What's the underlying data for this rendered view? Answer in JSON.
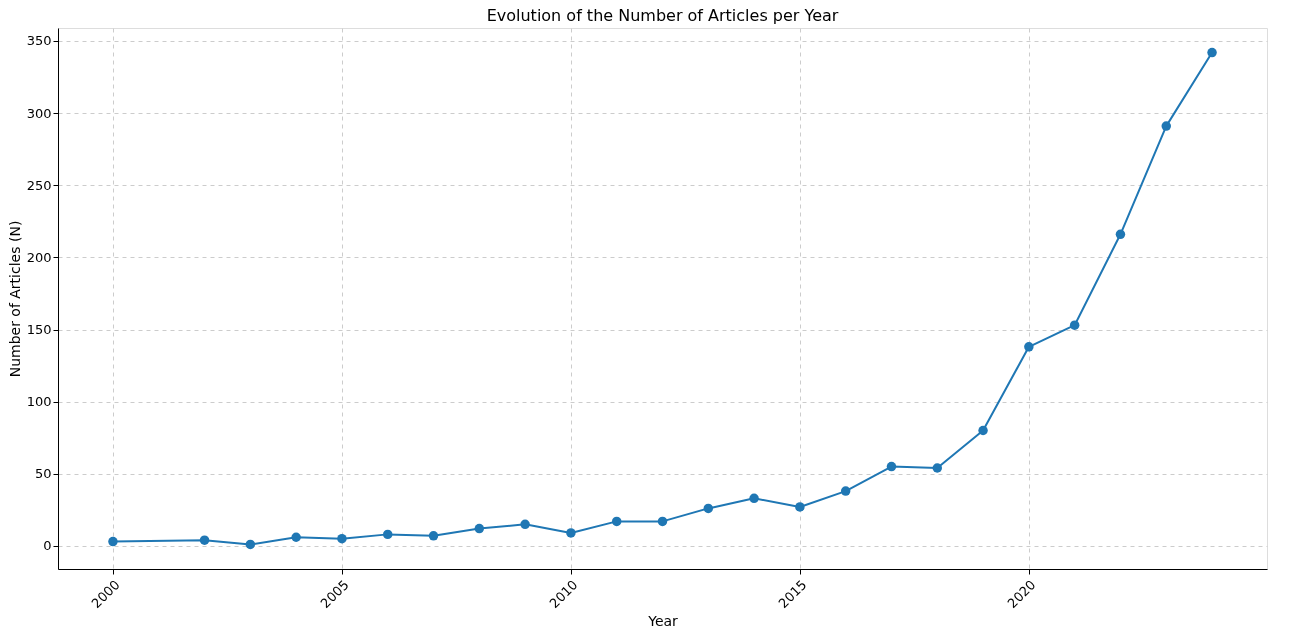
{
  "chart_data": {
    "type": "line",
    "title": "Evolution of the Number of Articles per Year",
    "xlabel": "Year",
    "ylabel": "Number of Articles (N)",
    "x": [
      2000,
      2002,
      2003,
      2004,
      2005,
      2006,
      2007,
      2008,
      2009,
      2010,
      2011,
      2012,
      2013,
      2014,
      2015,
      2016,
      2017,
      2018,
      2019,
      2020,
      2021,
      2022,
      2023,
      2024
    ],
    "series": [
      {
        "color": "#1f77b4",
        "values": [
          3,
          4,
          1,
          6,
          5,
          8,
          7,
          12,
          15,
          9,
          17,
          17,
          26,
          33,
          27,
          38,
          55,
          54,
          80,
          138,
          153,
          216,
          291,
          342
        ]
      }
    ],
    "xlim": [
      1998.8,
      2025.2
    ],
    "xticks": [
      2000,
      2005,
      2010,
      2015,
      2020
    ],
    "ylim": [
      -16,
      359
    ],
    "yticks": [
      0,
      50,
      100,
      150,
      200,
      250,
      300,
      350
    ],
    "grid": true,
    "marker": "circle",
    "line_style": "solid"
  }
}
